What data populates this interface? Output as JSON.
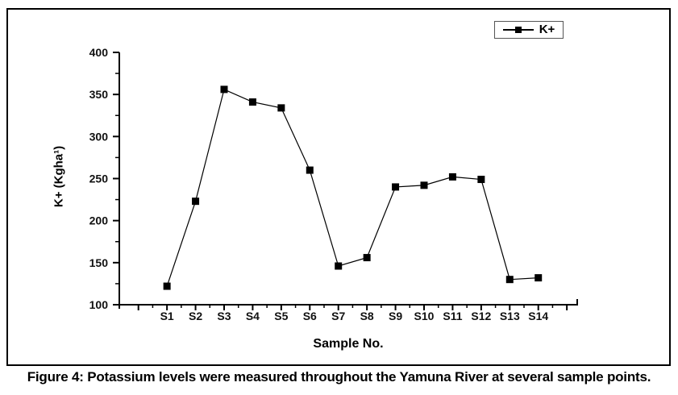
{
  "window": {
    "background_color": "#ffffff",
    "frame_border_color": "#000000"
  },
  "figure": {
    "caption": "Figure 4: Potassium levels were measured throughout the Yamuna River at several sample points."
  },
  "chart_data": {
    "type": "line",
    "title": "",
    "xlabel": "Sample No.",
    "ylabel": "K+ (Kgha¹)",
    "categories": [
      "S1",
      "S2",
      "S3",
      "S4",
      "S5",
      "S6",
      "S7",
      "S8",
      "S9",
      "S10",
      "S11",
      "S12",
      "S13",
      "S14"
    ],
    "series": [
      {
        "name": "K+",
        "marker": "filled-square",
        "color": "#000000",
        "values": [
          122,
          223,
          356,
          341,
          334,
          260,
          146,
          156,
          240,
          242,
          252,
          249,
          130,
          132
        ]
      }
    ],
    "ylim": [
      100,
      400
    ],
    "yticks": [
      100,
      150,
      200,
      250,
      300,
      350,
      400
    ],
    "minor_ytick_step": 25,
    "grid": false,
    "axis_color": "#000000",
    "tick_label_color": "#111111",
    "legend": {
      "position": "top-right",
      "border_color": "#555555",
      "entries": [
        "K+"
      ]
    }
  }
}
